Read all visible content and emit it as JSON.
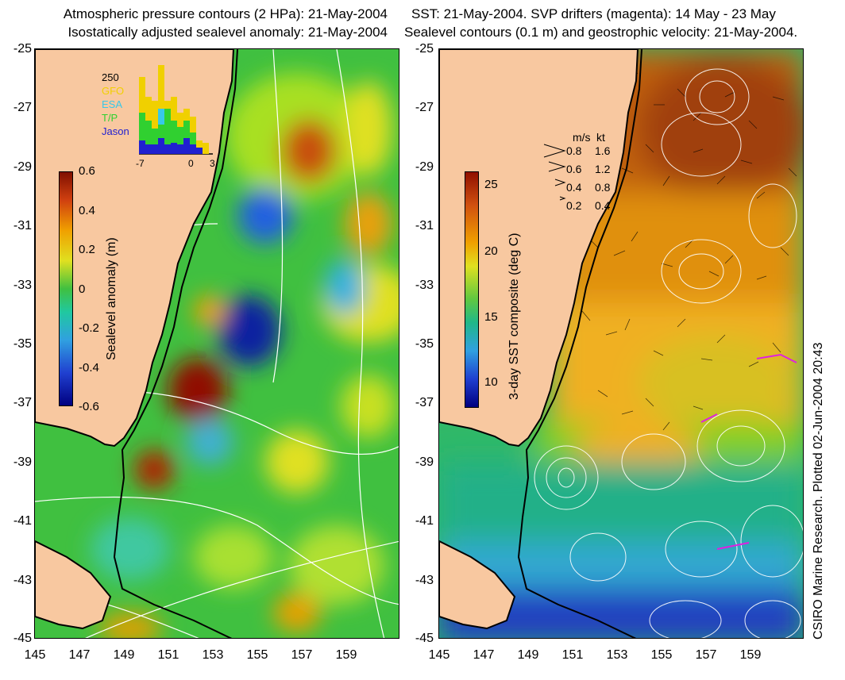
{
  "left_panel": {
    "title_line1": "Atmospheric pressure contours (2 HPa): 21-May-2004",
    "title_line2": "Isostatically adjusted sealevel anomaly: 21-May-2004",
    "colorbar_label": "Sealevel anomaly (m)",
    "colorbar_ticks": [
      "0.6",
      "0.4",
      "0.2",
      "0",
      "-0.2",
      "-0.4",
      "-0.6"
    ],
    "histogram": {
      "y_max_label": "250",
      "satellites": [
        {
          "name": "GFO",
          "color": "#f0d000"
        },
        {
          "name": "ESA",
          "color": "#38c8e8"
        },
        {
          "name": "T/P",
          "color": "#30d030"
        },
        {
          "name": "Jason",
          "color": "#2020d0"
        }
      ],
      "x_ticks": [
        "-7",
        "0",
        "3"
      ]
    }
  },
  "right_panel": {
    "title_line1": "SST: 21-May-2004. SVP drifters (magenta): 14 May - 23 May",
    "title_line2": "Sealevel contours (0.1 m) and geostrophic velocity: 21-May-2004.",
    "colorbar_label": "3-day SST composite (deg C)",
    "colorbar_ticks": [
      "25",
      "20",
      "15",
      "10"
    ],
    "velocity_legend": {
      "header_ms": "m/s",
      "header_kt": "kt",
      "rows": [
        {
          "ms": "0.8",
          "kt": "1.6"
        },
        {
          "ms": "0.6",
          "kt": "1.2"
        },
        {
          "ms": "0.4",
          "kt": "0.8"
        },
        {
          "ms": "0.2",
          "kt": "0.4"
        }
      ]
    }
  },
  "axes": {
    "lat_ticks": [
      "-25",
      "-27",
      "-29",
      "-31",
      "-33",
      "-35",
      "-37",
      "-39",
      "-41",
      "-43",
      "-45"
    ],
    "lon_ticks": [
      "145",
      "147",
      "149",
      "151",
      "153",
      "155",
      "157",
      "159"
    ]
  },
  "credit": "CSIRO Marine Research. Plotted 02-Jun-2004 20:43",
  "colors": {
    "land": "#f8c8a0",
    "coast_line": "#000000",
    "contour": "#ffffff"
  }
}
